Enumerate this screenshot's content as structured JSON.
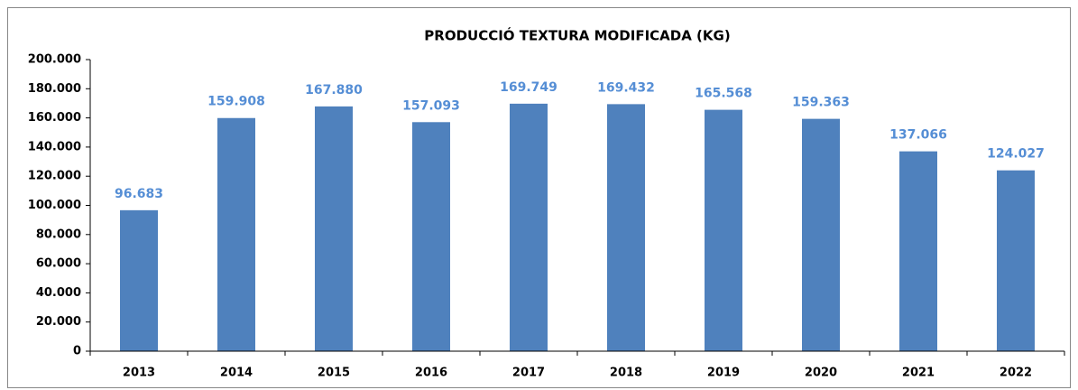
{
  "chart_data": {
    "type": "bar",
    "title": "PRODUCCIÓ TEXTURA MODIFICADA (KG)",
    "categories": [
      "2013",
      "2014",
      "2015",
      "2016",
      "2017",
      "2018",
      "2019",
      "2020",
      "2021",
      "2022"
    ],
    "values": [
      96683,
      159908,
      167880,
      157093,
      169749,
      169432,
      165568,
      159363,
      137066,
      124027
    ],
    "value_labels": [
      "96.683",
      "159.908",
      "167.880",
      "157.093",
      "169.749",
      "169.432",
      "165.568",
      "159.363",
      "137.066",
      "124.027"
    ],
    "color": "#4f81bd",
    "ylim": [
      0,
      200000
    ],
    "yticks": [
      0,
      {
        "value": 20000,
        "label": "20.000"
      },
      {
        "value": 40000,
        "label": "40.000"
      },
      {
        "value": 60000,
        "label": "60.000"
      },
      {
        "value": 80000,
        "label": "80.000"
      },
      {
        "value": 100000,
        "label": "100.000"
      },
      {
        "value": 120000,
        "label": "120.000"
      },
      {
        "value": 140000,
        "label": "140.000"
      },
      {
        "value": 160000,
        "label": "160.000"
      },
      {
        "value": 180000,
        "label": "180.000"
      },
      {
        "value": 200000,
        "label": "200.000"
      }
    ],
    "grid": false
  }
}
